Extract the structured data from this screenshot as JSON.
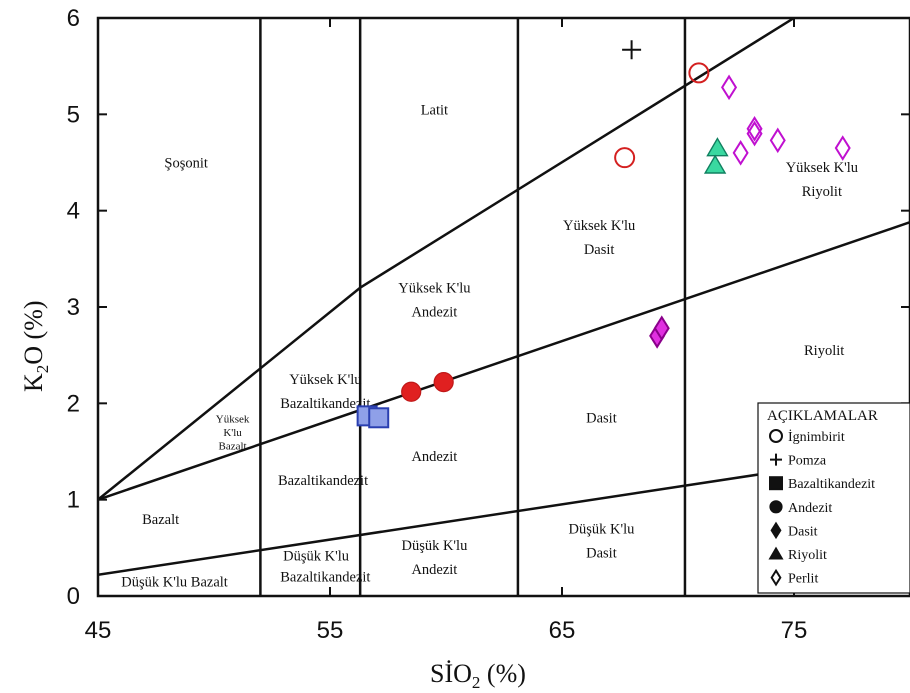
{
  "chart_data": {
    "type": "scatter",
    "xlabel_main": "SİO",
    "xlabel_sub": "2",
    "xlabel_tail": " (%)",
    "ylabel_main": "K",
    "ylabel_sub": "2",
    "ylabel_tail": "O (%)",
    "xlim": [
      45,
      80
    ],
    "ylim": [
      0,
      6
    ],
    "x_ticks": [
      45,
      55,
      65,
      75
    ],
    "y_ticks": [
      0,
      1,
      2,
      3,
      4,
      5,
      6
    ],
    "x_tick_labels": [
      "45",
      "55",
      "65",
      "75"
    ],
    "y_tick_labels": [
      "0",
      "1",
      "2",
      "3",
      "4",
      "5",
      "6"
    ],
    "vertical_boundaries": [
      52,
      56.3,
      63.1,
      70.3
    ],
    "boundary_lines": [
      {
        "from": [
          45,
          1.0
        ],
        "to": [
          56.3,
          3.2
        ]
      },
      {
        "from": [
          56.3,
          3.2
        ],
        "to": [
          75,
          6.0
        ]
      },
      {
        "from": [
          45,
          1.0
        ],
        "to": [
          80,
          3.88
        ]
      },
      {
        "from": [
          45,
          0.22
        ],
        "to": [
          80,
          1.5
        ]
      }
    ],
    "field_labels": [
      {
        "text": "Şoşonit",
        "x": 48.8,
        "y": 4.45
      },
      {
        "text": "Latit",
        "x": 59.5,
        "y": 5.0
      },
      {
        "text": "Yüksek K'lu",
        "x": 59.5,
        "y": 3.15
      },
      {
        "text": "Andezit",
        "x": 59.5,
        "y": 2.9
      },
      {
        "text": "Yüksek K'lu",
        "x": 66.6,
        "y": 3.8
      },
      {
        "text": "Dasit",
        "x": 66.6,
        "y": 3.55
      },
      {
        "text": "Yüksek K'lu",
        "x": 76.2,
        "y": 4.4
      },
      {
        "text": "Riyolit",
        "x": 76.2,
        "y": 4.15
      },
      {
        "text": "Riyolit",
        "x": 76.3,
        "y": 2.5
      },
      {
        "text": "Yüksek K'lu",
        "x": 54.8,
        "y": 2.2
      },
      {
        "text": "Bazaltikandezit",
        "x": 54.8,
        "y": 1.95
      },
      {
        "text": "Andezit",
        "x": 59.5,
        "y": 1.4
      },
      {
        "text": "Dasit",
        "x": 66.7,
        "y": 1.8
      },
      {
        "text": "Bazaltikandezit",
        "x": 54.7,
        "y": 1.15
      },
      {
        "text": "Bazalt",
        "x": 47.7,
        "y": 0.75
      },
      {
        "text": "Düşük K'lu",
        "x": 59.5,
        "y": 0.48
      },
      {
        "text": "Andezit",
        "x": 59.5,
        "y": 0.23
      },
      {
        "text": "Düşük K'lu",
        "x": 66.7,
        "y": 0.65
      },
      {
        "text": "Dasit",
        "x": 66.7,
        "y": 0.4
      },
      {
        "text": "Düşük K'lu",
        "x": 54.4,
        "y": 0.37
      },
      {
        "text": "Bazaltikandezit",
        "x": 54.8,
        "y": 0.15
      },
      {
        "text": "Düşük K'lu Bazalt",
        "x": 48.3,
        "y": 0.1
      }
    ],
    "small_field_labels": [
      {
        "text": "Yüksek",
        "x": 50.8,
        "y": 1.8
      },
      {
        "text": "K'lu",
        "x": 50.8,
        "y": 1.66
      },
      {
        "text": "Bazalt",
        "x": 50.8,
        "y": 1.52
      }
    ],
    "series": [
      {
        "name": "İgnimbirit",
        "marker": "open-circle",
        "color": "#d42020",
        "fill": "none",
        "points": [
          [
            67.7,
            4.55
          ],
          [
            70.9,
            5.43
          ]
        ]
      },
      {
        "name": "Pomza",
        "marker": "plus",
        "color": "#111111",
        "fill": "none",
        "points": [
          [
            68.0,
            5.67
          ]
        ]
      },
      {
        "name": "Bazaltikandezit",
        "marker": "square",
        "color": "#2a3fb0",
        "fill": "#8fa0e8",
        "points": [
          [
            56.6,
            1.87
          ],
          [
            57.1,
            1.85
          ]
        ]
      },
      {
        "name": "Andezit",
        "marker": "filled-circle",
        "color": "#c01818",
        "fill": "#e02020",
        "points": [
          [
            58.5,
            2.12
          ],
          [
            59.9,
            2.22
          ]
        ]
      },
      {
        "name": "Dasit",
        "marker": "filled-diamond",
        "color": "#8a008a",
        "fill": "#e030e0",
        "points": [
          [
            69.1,
            2.7
          ],
          [
            69.3,
            2.78
          ]
        ]
      },
      {
        "name": "Riyolit",
        "marker": "triangle",
        "color": "#108060",
        "fill": "#3ad8a0",
        "points": [
          [
            71.7,
            4.65
          ],
          [
            71.6,
            4.47
          ]
        ]
      },
      {
        "name": "Perlit",
        "marker": "open-diamond",
        "color": "#c010d0",
        "fill": "none",
        "points": [
          [
            72.2,
            5.28
          ],
          [
            73.3,
            4.85
          ],
          [
            73.3,
            4.8
          ],
          [
            72.7,
            4.6
          ],
          [
            74.3,
            4.73
          ],
          [
            77.1,
            4.65
          ]
        ]
      }
    ],
    "legend": {
      "title": "AÇIKLAMALAR",
      "position": "bottom-right",
      "items": [
        {
          "label": "İgnimbirit",
          "marker": "open-circle"
        },
        {
          "label": "Pomza",
          "marker": "plus"
        },
        {
          "label": "Bazaltikandezit",
          "marker": "square"
        },
        {
          "label": "Andezit",
          "marker": "filled-circle"
        },
        {
          "label": "Dasit",
          "marker": "filled-diamond"
        },
        {
          "label": "Riyolit",
          "marker": "triangle"
        },
        {
          "label": "Perlit",
          "marker": "open-diamond"
        }
      ]
    }
  }
}
